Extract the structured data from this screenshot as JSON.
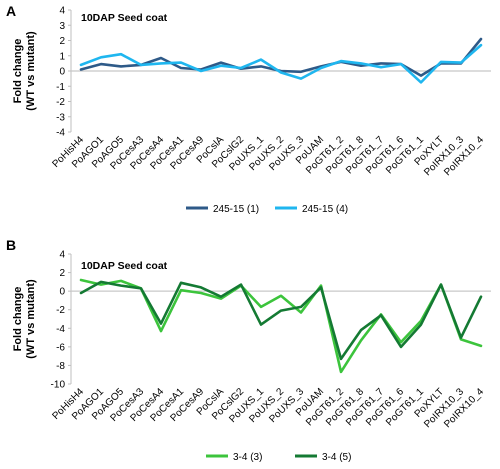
{
  "chart_data": [
    {
      "panel": "A",
      "type": "line",
      "inset_title": "10DAP Seed coat",
      "ylabel_line1": "Fold change",
      "ylabel_line2": "(WT vs mutant)",
      "ylim": [
        -4,
        4
      ],
      "yticks": [
        -4,
        -3,
        -2,
        -1,
        0,
        1,
        2,
        3,
        4
      ],
      "legend_position": "bottom",
      "categories": [
        "PoHisH4",
        "PoAGO1",
        "PoAGO5",
        "PoCesA3",
        "PoCesA4",
        "PoCesA1",
        "PoCesA9",
        "PoCslA",
        "PoCslG2",
        "PoUXS_1",
        "PoUXS_2",
        "PoUXS_3",
        "PoUAM",
        "PoGT61_2",
        "PoGT61_8",
        "PoGT61_7",
        "PoGT61_6",
        "PoGT61_1",
        "PoXYLT",
        "PoIRX10_3",
        "PoIRX10_4"
      ],
      "series": [
        {
          "name": "245-15 (1)",
          "color": "#2e5a88",
          "values": [
            0.1,
            0.45,
            0.3,
            0.4,
            0.85,
            0.2,
            0.1,
            0.55,
            0.15,
            0.3,
            0.0,
            -0.05,
            0.3,
            0.6,
            0.35,
            0.5,
            0.45,
            -0.3,
            0.5,
            0.5,
            2.1
          ]
        },
        {
          "name": "245-15 (4)",
          "color": "#1fb6ef",
          "values": [
            0.4,
            0.9,
            1.1,
            0.4,
            0.5,
            0.55,
            0.0,
            0.35,
            0.2,
            0.75,
            -0.1,
            -0.5,
            0.2,
            0.65,
            0.5,
            0.25,
            0.45,
            -0.75,
            0.6,
            0.55,
            1.7
          ]
        }
      ]
    },
    {
      "panel": "B",
      "type": "line",
      "inset_title": "10DAP Seed coat",
      "ylabel_line1": "Fold change",
      "ylabel_line2": "(WT vs mutant)",
      "ylim": [
        -10,
        4
      ],
      "yticks": [
        -10,
        -8,
        -6,
        -4,
        -2,
        0,
        2,
        4
      ],
      "legend_position": "bottom",
      "categories": [
        "PoHisH4",
        "PoAGO1",
        "PoAGO5",
        "PoCesA3",
        "PoCesA4",
        "PoCesA1",
        "PoCesA9",
        "PoCslA",
        "PoCslG2",
        "PoUXS_1",
        "PoUXS_2",
        "PoUXS_3",
        "PoUAM",
        "PoGT61_2",
        "PoGT61_8",
        "PoGT61_7",
        "PoGT61_6",
        "PoGT61_1",
        "PoXYLT",
        "PoIRX10_3",
        "PoIRX10_4"
      ],
      "series": [
        {
          "name": "3-4 (3)",
          "color": "#3cc43c",
          "values": [
            1.2,
            0.7,
            1.1,
            0.3,
            -4.3,
            0.1,
            -0.2,
            -0.8,
            0.6,
            -1.7,
            -0.5,
            -2.3,
            0.6,
            -8.7,
            -5.3,
            -2.5,
            -5.5,
            -3.2,
            0.7,
            -5.2,
            -5.9
          ]
        },
        {
          "name": "3-4 (5)",
          "color": "#147a33",
          "values": [
            -0.2,
            1.0,
            0.6,
            0.3,
            -3.5,
            0.9,
            0.4,
            -0.6,
            0.7,
            -3.6,
            -2.1,
            -1.7,
            0.4,
            -7.3,
            -4.2,
            -2.6,
            -6.0,
            -3.6,
            0.7,
            -5.0,
            -0.6
          ]
        }
      ]
    }
  ]
}
